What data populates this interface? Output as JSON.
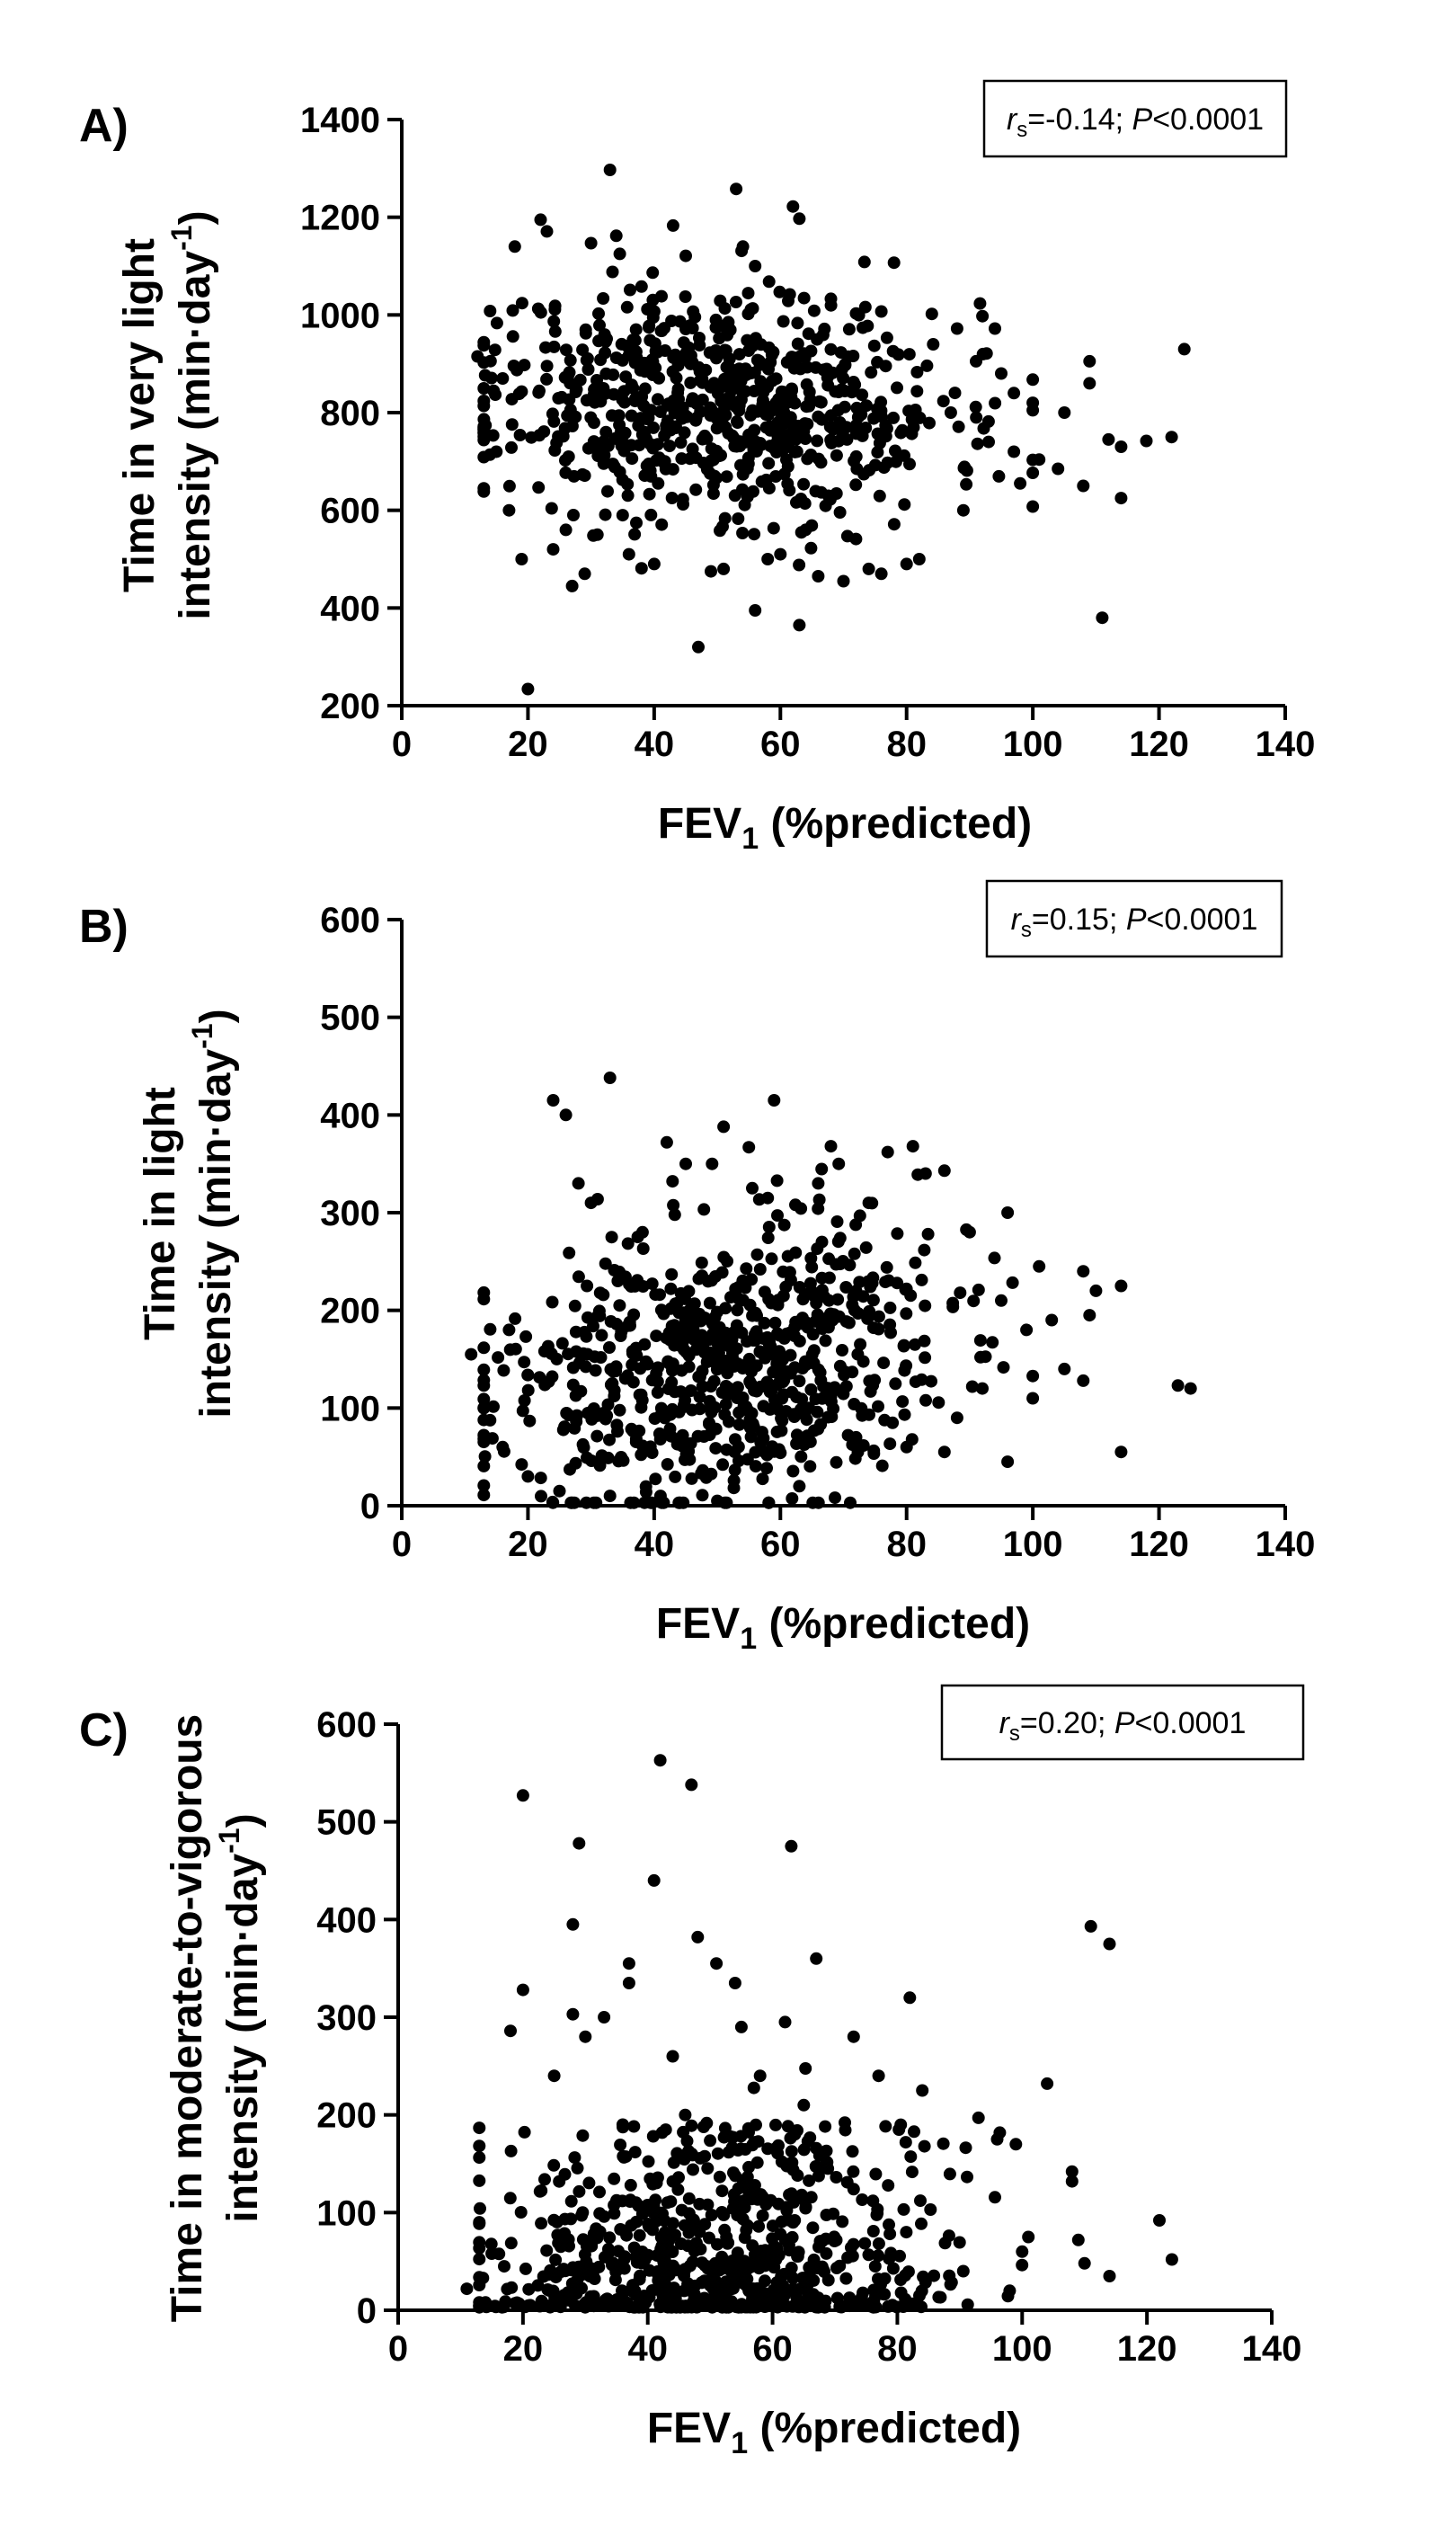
{
  "chart_data": [
    {
      "type": "scatter",
      "panel_label": "A)",
      "title": "",
      "xlabel": "FEV",
      "xlabel_sub": "1",
      "xlabel_after": " (%predicted)",
      "ylabel_line1": "Time in very light",
      "ylabel_line2": "intensity (min·day",
      "ylabel_sup": "-1",
      "ylabel_end": ")",
      "xlim": [
        0,
        140
      ],
      "ylim": [
        200,
        1400
      ],
      "xticks": [
        "0",
        "20",
        "40",
        "60",
        "80",
        "100",
        "120",
        "140"
      ],
      "yticks": [
        "200",
        "400",
        "600",
        "800",
        "1000",
        "1200",
        "1400"
      ],
      "stats": {
        "r_letter": "r",
        "r_sub": "s",
        "r_value": "=-0.14; ",
        "p_letter": "P",
        "p_value": "<0.0001"
      },
      "points": [
        [
          20,
          234
        ],
        [
          47,
          320
        ],
        [
          111,
          380
        ],
        [
          63,
          365
        ],
        [
          56,
          395
        ],
        [
          33,
          1297
        ],
        [
          53,
          1258
        ],
        [
          62,
          1222
        ],
        [
          63,
          1197
        ],
        [
          22,
          1195
        ],
        [
          43,
          1183
        ],
        [
          23,
          1171
        ],
        [
          30,
          1147
        ],
        [
          34,
          1162
        ],
        [
          45,
          1121
        ],
        [
          56,
          1100
        ],
        [
          78,
          1107
        ],
        [
          38,
          1058
        ],
        [
          68,
          1033
        ],
        [
          14,
          1008
        ],
        [
          40,
          1007
        ],
        [
          72,
          1003
        ],
        [
          84,
          1002
        ],
        [
          88,
          972
        ],
        [
          94,
          972
        ],
        [
          109,
          905
        ],
        [
          124,
          930
        ],
        [
          112,
          745
        ],
        [
          122,
          750
        ],
        [
          114,
          730
        ],
        [
          118,
          742
        ],
        [
          114,
          625
        ],
        [
          108,
          650
        ],
        [
          104,
          685
        ],
        [
          101,
          704
        ],
        [
          98,
          655
        ],
        [
          97,
          720
        ],
        [
          93,
          740
        ],
        [
          87,
          800
        ],
        [
          91,
          905
        ],
        [
          95,
          880
        ],
        [
          100,
          820
        ],
        [
          105,
          800
        ],
        [
          109,
          860
        ],
        [
          97,
          840
        ],
        [
          27,
          445
        ],
        [
          29,
          470
        ],
        [
          36,
          510
        ],
        [
          40,
          490
        ],
        [
          49,
          475
        ],
        [
          51,
          480
        ],
        [
          58,
          500
        ],
        [
          60,
          510
        ],
        [
          66,
          465
        ],
        [
          70,
          455
        ],
        [
          74,
          480
        ],
        [
          76,
          470
        ],
        [
          80,
          490
        ],
        [
          82,
          500
        ],
        [
          64,
          560
        ],
        [
          19,
          500
        ],
        [
          24,
          520
        ],
        [
          26,
          560
        ],
        [
          31,
          550
        ],
        [
          35,
          590
        ],
        [
          17,
          600
        ],
        [
          12,
          915
        ],
        [
          16,
          870
        ],
        [
          15,
          720
        ]
      ],
      "dense_seed": 11,
      "dense_count": 720
    },
    {
      "type": "scatter",
      "panel_label": "B)",
      "title": "",
      "xlabel": "FEV",
      "xlabel_sub": "1",
      "xlabel_after": " (%predicted)",
      "ylabel_line1": "Time in light",
      "ylabel_line2": "intensity (min·day",
      "ylabel_sup": "-1",
      "ylabel_end": ")",
      "xlim": [
        0,
        140
      ],
      "ylim": [
        0,
        600
      ],
      "xticks": [
        "0",
        "20",
        "40",
        "60",
        "80",
        "100",
        "120",
        "140"
      ],
      "yticks": [
        "0",
        "100",
        "200",
        "300",
        "400",
        "500",
        "600"
      ],
      "stats": {
        "r_letter": "r",
        "r_sub": "s",
        "r_value": "=0.15; ",
        "p_letter": "P",
        "p_value": "<0.0001"
      },
      "points": [
        [
          33,
          438
        ],
        [
          59,
          415
        ],
        [
          24,
          415
        ],
        [
          26,
          400
        ],
        [
          42,
          372
        ],
        [
          51,
          388
        ],
        [
          55,
          367
        ],
        [
          68,
          368
        ],
        [
          77,
          362
        ],
        [
          81,
          368
        ],
        [
          83,
          340
        ],
        [
          86,
          343
        ],
        [
          96,
          300
        ],
        [
          101,
          245
        ],
        [
          108,
          240
        ],
        [
          110,
          220
        ],
        [
          114,
          225
        ],
        [
          109,
          195
        ],
        [
          123,
          123
        ],
        [
          125,
          120
        ],
        [
          114,
          55
        ],
        [
          96,
          45
        ],
        [
          105,
          140
        ],
        [
          108,
          128
        ],
        [
          11,
          155
        ],
        [
          17,
          180
        ],
        [
          28,
          330
        ],
        [
          30,
          310
        ],
        [
          45,
          350
        ],
        [
          58,
          315
        ],
        [
          66,
          330
        ],
        [
          74,
          310
        ],
        [
          90,
          280
        ],
        [
          95,
          210
        ],
        [
          99,
          180
        ],
        [
          103,
          190
        ],
        [
          100,
          110
        ],
        [
          92,
          120
        ],
        [
          88,
          90
        ],
        [
          86,
          55
        ],
        [
          80,
          60
        ],
        [
          72,
          70
        ],
        [
          63,
          20
        ],
        [
          50,
          5
        ],
        [
          41,
          10
        ],
        [
          33,
          10
        ],
        [
          25,
          15
        ],
        [
          20,
          30
        ],
        [
          16,
          60
        ]
      ],
      "dense_seed": 23,
      "dense_count": 720
    },
    {
      "type": "scatter",
      "panel_label": "C)",
      "title": "",
      "xlabel": "FEV",
      "xlabel_sub": "1",
      "xlabel_after": " (%predicted)",
      "ylabel_line1": "Time in moderate-to-vigorous",
      "ylabel_line2": "intensity (min·day",
      "ylabel_sup": "-1",
      "ylabel_end": ")",
      "xlim": [
        0,
        140
      ],
      "ylim": [
        0,
        600
      ],
      "xticks": [
        "0",
        "20",
        "40",
        "60",
        "80",
        "100",
        "120",
        "140"
      ],
      "yticks": [
        "0",
        "100",
        "200",
        "300",
        "400",
        "500",
        "600"
      ],
      "stats": {
        "r_letter": "r",
        "r_sub": "s",
        "r_value": "=0.20; ",
        "p_letter": "P",
        "p_value": "<0.0001"
      },
      "points": [
        [
          42,
          563
        ],
        [
          47,
          538
        ],
        [
          20,
          527
        ],
        [
          29,
          478
        ],
        [
          63,
          475
        ],
        [
          41,
          440
        ],
        [
          111,
          393
        ],
        [
          114,
          375
        ],
        [
          28,
          395
        ],
        [
          48,
          382
        ],
        [
          37,
          355
        ],
        [
          51,
          355
        ],
        [
          67,
          360
        ],
        [
          37,
          335
        ],
        [
          54,
          335
        ],
        [
          20,
          328
        ],
        [
          82,
          320
        ],
        [
          28,
          303
        ],
        [
          33,
          300
        ],
        [
          55,
          290
        ],
        [
          62,
          295
        ],
        [
          18,
          286
        ],
        [
          30,
          280
        ],
        [
          73,
          280
        ],
        [
          104,
          232
        ],
        [
          96,
          175
        ],
        [
          99,
          170
        ],
        [
          93,
          197
        ],
        [
          108,
          142
        ],
        [
          108,
          132
        ],
        [
          122,
          92
        ],
        [
          124,
          52
        ],
        [
          114,
          35
        ],
        [
          109,
          72
        ],
        [
          110,
          48
        ],
        [
          100,
          60
        ],
        [
          101,
          75
        ],
        [
          98,
          20
        ],
        [
          11,
          22
        ],
        [
          14,
          8
        ],
        [
          15,
          58
        ],
        [
          17,
          45
        ],
        [
          25,
          240
        ],
        [
          44,
          260
        ],
        [
          58,
          240
        ],
        [
          77,
          240
        ],
        [
          84,
          225
        ],
        [
          46,
          200
        ],
        [
          65,
          210
        ],
        [
          36,
          190
        ]
      ],
      "dense_seed": 37,
      "dense_count": 760
    }
  ]
}
